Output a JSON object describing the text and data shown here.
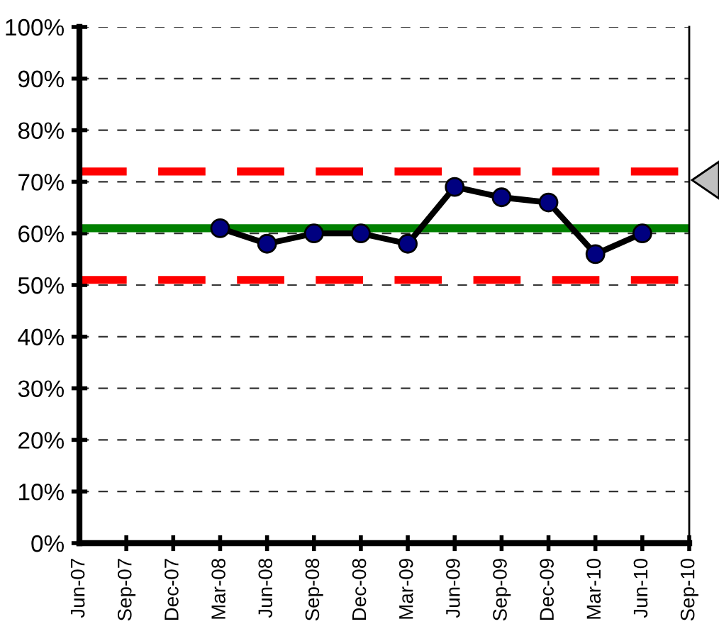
{
  "chart_data": {
    "type": "line",
    "categories": [
      "Jun-07",
      "Sep-07",
      "Dec-07",
      "Mar-08",
      "Jun-08",
      "Sep-08",
      "Dec-08",
      "Mar-09",
      "Jun-09",
      "Sep-09",
      "Dec-09",
      "Mar-10",
      "Jun-10",
      "Sep-10"
    ],
    "series": [
      {
        "color": "#000000",
        "values": [
          null,
          null,
          null,
          61,
          58,
          60,
          60,
          58,
          69,
          67,
          66,
          56,
          60,
          null
        ]
      }
    ],
    "marker": "circle",
    "line_style": "solid",
    "grid": "y",
    "ylim": [
      0,
      100
    ],
    "yticks": [
      {
        "value": 0,
        "label": "0%"
      },
      {
        "value": 10,
        "label": "10%"
      },
      {
        "value": 20,
        "label": "20%"
      },
      {
        "value": 30,
        "label": "30%"
      },
      {
        "value": 40,
        "label": "40%"
      },
      {
        "value": 50,
        "label": "50%"
      },
      {
        "value": 60,
        "label": "60%"
      },
      {
        "value": 70,
        "label": "70%"
      },
      {
        "value": 80,
        "label": "80%"
      },
      {
        "value": 90,
        "label": "90%"
      },
      {
        "value": 100,
        "label": "100%"
      }
    ],
    "ref_lines": [
      {
        "axis": "y",
        "value": 72,
        "label": null,
        "color": "#ff0000",
        "line_style": "dashed"
      },
      {
        "axis": "y",
        "value": 61,
        "label": null,
        "color": "#008000",
        "line_style": "solid"
      },
      {
        "axis": "y",
        "value": 51,
        "label": null,
        "color": "#ff0000",
        "line_style": "dashed"
      }
    ]
  }
}
